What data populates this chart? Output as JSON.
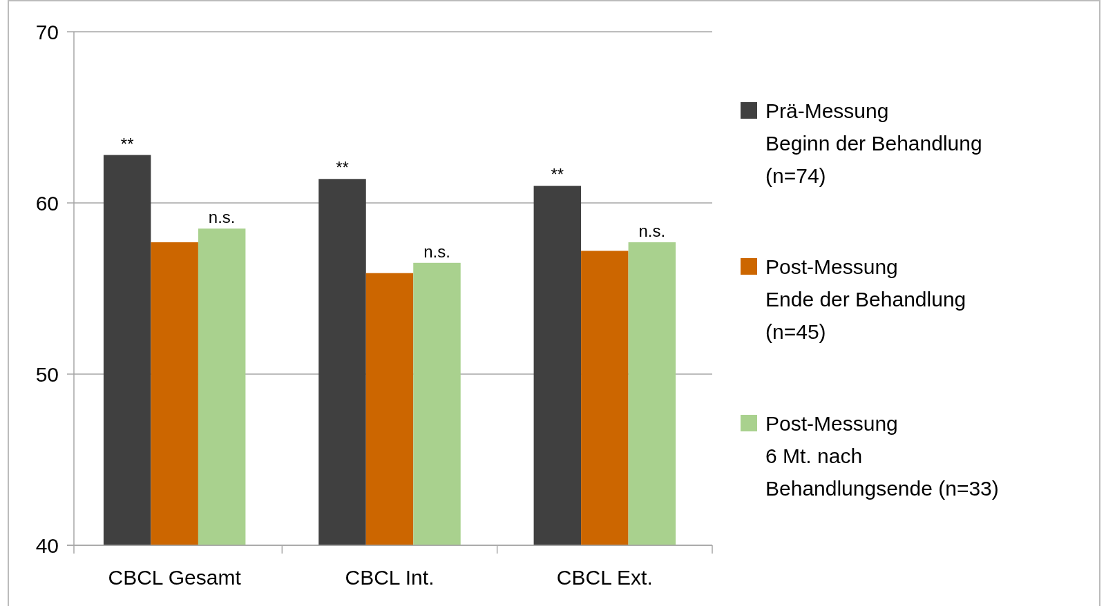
{
  "chart_data": {
    "type": "bar",
    "categories": [
      "CBCL Gesamt",
      "CBCL Int.",
      "CBCL Ext."
    ],
    "series": [
      {
        "name": "Prä-Messung\nBeginn der Behandlung\n(n=74)",
        "color": "#404040",
        "values": [
          62.8,
          61.4,
          61.0
        ]
      },
      {
        "name": "Post-Messung\nEnde der Behandlung\n(n=45)",
        "color": "#cc6600",
        "values": [
          57.7,
          55.9,
          57.2
        ]
      },
      {
        "name": "Post-Messung\n6 Mt. nach\nBehandlungsende (n=33)",
        "color": "#a9d18e",
        "values": [
          58.5,
          56.5,
          57.7
        ]
      }
    ],
    "ylim": [
      40,
      70
    ],
    "yticks": [
      40,
      50,
      60,
      70
    ],
    "grid": "y",
    "legend": "right",
    "annotations": [
      "**",
      "n.s.",
      "**",
      "n.s.",
      "**",
      "n.s."
    ]
  }
}
